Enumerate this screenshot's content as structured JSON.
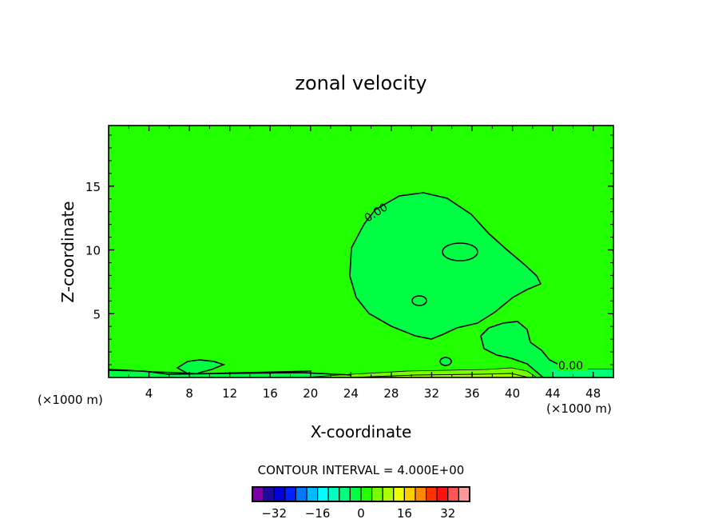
{
  "chart_data": {
    "type": "heatmap",
    "title": "zonal velocity",
    "xlabel": "X-coordinate",
    "ylabel": "Z-coordinate",
    "x_unit_label": "(×1000 m)",
    "xlim": [
      0,
      50
    ],
    "ylim": [
      0,
      19.75
    ],
    "xticks": [
      4,
      8,
      12,
      16,
      20,
      24,
      28,
      32,
      36,
      40,
      44,
      48
    ],
    "yticks": [
      5,
      10,
      15
    ],
    "contour_labels": [
      "0.00",
      "0.00"
    ],
    "contour_interval_text": "CONTOUR INTERVAL = 4.000E+00",
    "colorbar": {
      "levels": [
        -40,
        -36,
        -32,
        -28,
        -24,
        -20,
        -16,
        -12,
        -8,
        -4,
        0,
        4,
        8,
        12,
        16,
        20,
        24,
        28,
        32,
        36,
        40
      ],
      "tick_values": [
        -32,
        -16,
        0,
        16,
        32
      ],
      "tick_labels": [
        "−32",
        "−16",
        "0",
        "16",
        "32"
      ],
      "colors": [
        "#7f00a8",
        "#1c0aa0",
        "#0000dd",
        "#0022ff",
        "#0077ff",
        "#00bbff",
        "#00ffff",
        "#00ffbb",
        "#00ff77",
        "#00ff44",
        "#22ff00",
        "#77ff00",
        "#aaff00",
        "#eeff00",
        "#ffcc00",
        "#ff8800",
        "#ff3300",
        "#ff1111",
        "#ff5555",
        "#ff9999"
      ]
    },
    "background_level_color": "#22ff00",
    "negative_region_color": "#00ff44"
  }
}
